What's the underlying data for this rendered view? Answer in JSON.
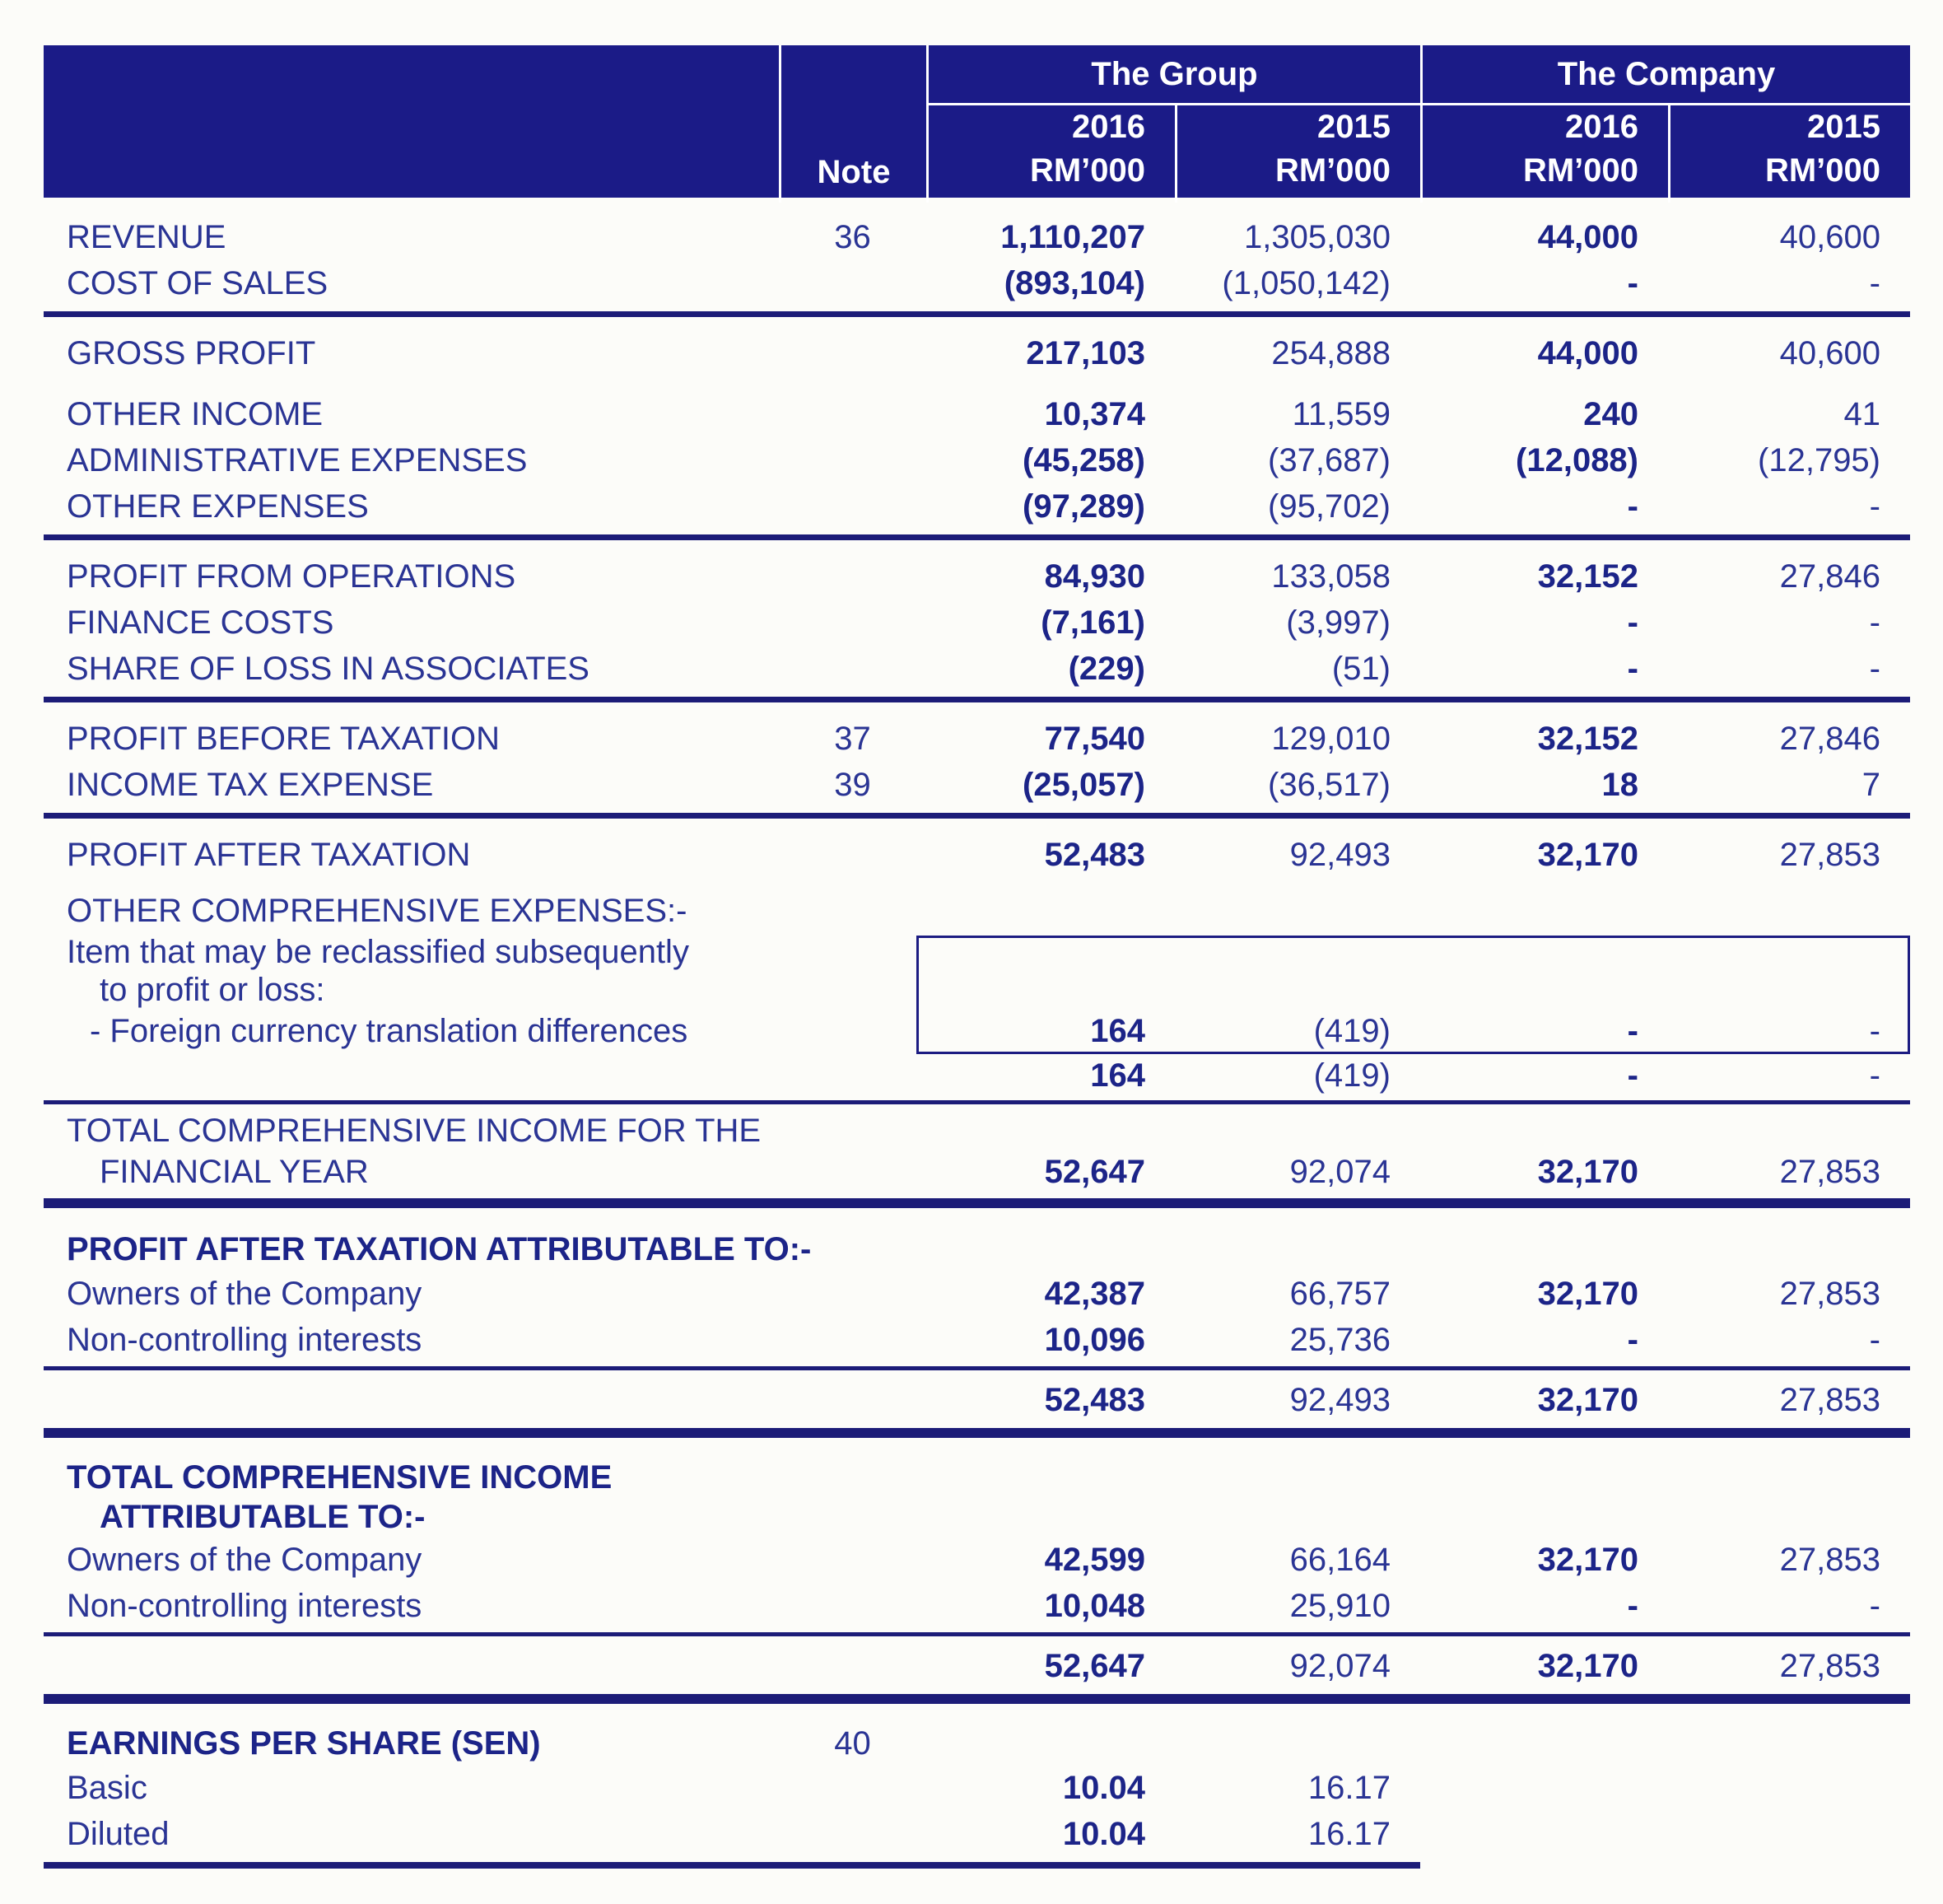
{
  "header": {
    "note_label": "Note",
    "group_label": "The Group",
    "company_label": "The Company",
    "year_current": "2016",
    "year_prior": "2015",
    "unit": "RM’000"
  },
  "rows": {
    "revenue": {
      "label": "REVENUE",
      "note": "36",
      "g2016": "1,110,207",
      "g2015": "1,305,030",
      "c2016": "44,000",
      "c2015": "40,600"
    },
    "cost_of_sales": {
      "label": "COST OF SALES",
      "g2016": "(893,104)",
      "g2015": "(1,050,142)",
      "c2016": "-",
      "c2015": "-"
    },
    "gross_profit": {
      "label": "GROSS PROFIT",
      "g2016": "217,103",
      "g2015": "254,888",
      "c2016": "44,000",
      "c2015": "40,600"
    },
    "other_income": {
      "label": "OTHER INCOME",
      "g2016": "10,374",
      "g2015": "11,559",
      "c2016": "240",
      "c2015": "41"
    },
    "admin_expenses": {
      "label": "ADMINISTRATIVE EXPENSES",
      "g2016": "(45,258)",
      "g2015": "(37,687)",
      "c2016": "(12,088)",
      "c2015": "(12,795)"
    },
    "other_expenses": {
      "label": "OTHER EXPENSES",
      "g2016": "(97,289)",
      "g2015": "(95,702)",
      "c2016": "-",
      "c2015": "-"
    },
    "profit_from_operations": {
      "label": "PROFIT FROM OPERATIONS",
      "g2016": "84,930",
      "g2015": "133,058",
      "c2016": "32,152",
      "c2015": "27,846"
    },
    "finance_costs": {
      "label": "FINANCE COSTS",
      "g2016": "(7,161)",
      "g2015": "(3,997)",
      "c2016": "-",
      "c2015": "-"
    },
    "share_of_loss_associates": {
      "label": "SHARE OF LOSS IN ASSOCIATES",
      "g2016": "(229)",
      "g2015": "(51)",
      "c2016": "-",
      "c2015": "-"
    },
    "profit_before_tax": {
      "label": "PROFIT BEFORE TAXATION",
      "note": "37",
      "g2016": "77,540",
      "g2015": "129,010",
      "c2016": "32,152",
      "c2015": "27,846"
    },
    "income_tax_expense": {
      "label": "INCOME TAX EXPENSE",
      "note": "39",
      "g2016": "(25,057)",
      "g2015": "(36,517)",
      "c2016": "18",
      "c2015": "7"
    },
    "profit_after_tax": {
      "label": "PROFIT AFTER TAXATION",
      "g2016": "52,483",
      "g2015": "92,493",
      "c2016": "32,170",
      "c2015": "27,853"
    },
    "oci_heading": {
      "label": "OTHER COMPREHENSIVE EXPENSES:-"
    },
    "oci_line1": {
      "label": "Item that may be reclassified subsequently"
    },
    "oci_line2": {
      "label": "to profit or loss:"
    },
    "fx_translation": {
      "label": "-  Foreign currency translation differences",
      "g2016": "164",
      "g2015": "(419)",
      "c2016": "-",
      "c2015": "-"
    },
    "oci_subtotal": {
      "g2016": "164",
      "g2015": "(419)",
      "c2016": "-",
      "c2015": "-"
    },
    "tci_line1": {
      "label": "TOTAL COMPREHENSIVE INCOME FOR THE"
    },
    "tci_line2": {
      "label": "FINANCIAL YEAR",
      "g2016": "52,647",
      "g2015": "92,074",
      "c2016": "32,170",
      "c2015": "27,853"
    },
    "pat_attr_heading": {
      "label": "PROFIT AFTER TAXATION ATTRIBUTABLE TO:-"
    },
    "pat_attr_owners": {
      "label": "Owners of the Company",
      "g2016": "42,387",
      "g2015": "66,757",
      "c2016": "32,170",
      "c2015": "27,853"
    },
    "pat_attr_nci": {
      "label": "Non-controlling interests",
      "g2016": "10,096",
      "g2015": "25,736",
      "c2016": "-",
      "c2015": "-"
    },
    "pat_attr_total": {
      "g2016": "52,483",
      "g2015": "92,493",
      "c2016": "32,170",
      "c2015": "27,853"
    },
    "tci_attr_line1": {
      "label": "TOTAL COMPREHENSIVE INCOME"
    },
    "tci_attr_line2": {
      "label": "ATTRIBUTABLE TO:-"
    },
    "tci_attr_owners": {
      "label": "Owners of the Company",
      "g2016": "42,599",
      "g2015": "66,164",
      "c2016": "32,170",
      "c2015": "27,853"
    },
    "tci_attr_nci": {
      "label": "Non-controlling interests",
      "g2016": "10,048",
      "g2015": "25,910",
      "c2016": "-",
      "c2015": "-"
    },
    "tci_attr_total": {
      "g2016": "52,647",
      "g2015": "92,074",
      "c2016": "32,170",
      "c2015": "27,853"
    },
    "eps_heading": {
      "label": "EARNINGS PER SHARE (SEN)",
      "note": "40"
    },
    "eps_basic": {
      "label": "Basic",
      "g2016": "10.04",
      "g2015": "16.17"
    },
    "eps_diluted": {
      "label": "Diluted",
      "g2016": "10.04",
      "g2015": "16.17"
    }
  },
  "colors": {
    "header_bg": "#1b1b87",
    "header_text": "#ffffff",
    "text": "#2a3494",
    "text_bold": "#1c2488",
    "rule": "#1c1c78",
    "page_bg": "#fcfcf9",
    "box_border": "#1c1c82"
  }
}
